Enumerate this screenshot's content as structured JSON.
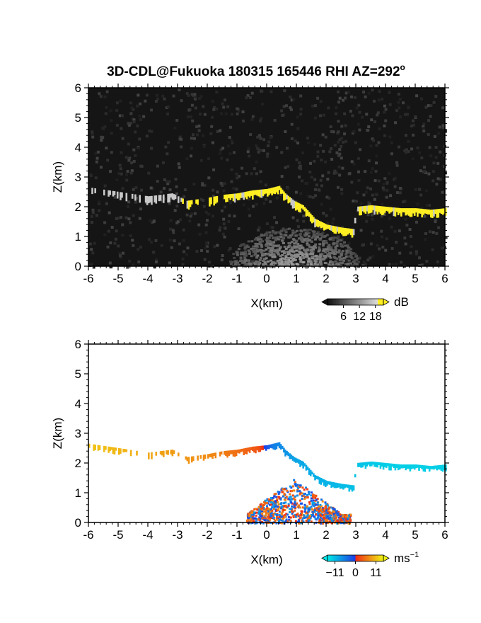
{
  "chart_data": [
    {
      "type": "heatmap",
      "panel": "backscatter",
      "title": "3D-CDL@Fukuoka 180315 165446 RHI AZ=292",
      "title_superscript": "o",
      "xlabel": "X(km)",
      "ylabel": "Z(km)",
      "xlim": [
        -6,
        6
      ],
      "ylim": [
        0,
        6
      ],
      "x_ticks": [
        "-6",
        "-5",
        "-4",
        "-3",
        "-2",
        "-1",
        "0",
        "1",
        "2",
        "3",
        "4",
        "5",
        "6"
      ],
      "y_ticks": [
        "0",
        "1",
        "2",
        "3",
        "4",
        "5",
        "6"
      ],
      "colorbar": {
        "unit": "dB",
        "ticks": [
          "6",
          "12",
          "18"
        ],
        "range": [
          0,
          21
        ]
      },
      "background": "#151515",
      "colors": {
        "strong": "#ffee22",
        "weak": "#c8c8c8"
      },
      "layer_top_km": [
        [
          -6,
          2.65
        ],
        [
          -5,
          2.5
        ],
        [
          -4,
          2.35
        ],
        [
          -3.2,
          2.45
        ],
        [
          -2.7,
          2.2
        ],
        [
          -2,
          2.3
        ],
        [
          -1.5,
          2.4
        ],
        [
          -1,
          2.45
        ],
        [
          -0.5,
          2.55
        ],
        [
          0,
          2.6
        ],
        [
          0.4,
          2.7
        ],
        [
          0.6,
          2.45
        ],
        [
          0.9,
          2.2
        ],
        [
          1.2,
          2.05
        ],
        [
          1.6,
          1.6
        ],
        [
          2,
          1.4
        ],
        [
          2.5,
          1.3
        ],
        [
          2.9,
          1.25
        ],
        [
          3,
          2.0
        ],
        [
          3.5,
          2.05
        ],
        [
          4,
          2.0
        ],
        [
          4.5,
          1.95
        ],
        [
          5,
          1.95
        ],
        [
          5.5,
          1.9
        ],
        [
          6,
          1.95
        ]
      ],
      "layer_thickness_km": 0.22,
      "ground_clutter": {
        "x_center_km": 0.9,
        "half_width_km": 2.2,
        "max_height_km": 1.3
      }
    },
    {
      "type": "heatmap",
      "panel": "doppler_velocity",
      "xlabel": "X(km)",
      "ylabel": "Z(km)",
      "xlim": [
        -6,
        6
      ],
      "ylim": [
        0,
        6
      ],
      "x_ticks": [
        "-6",
        "-5",
        "-4",
        "-3",
        "-2",
        "-1",
        "0",
        "1",
        "2",
        "3",
        "4",
        "5",
        "6"
      ],
      "y_ticks": [
        "0",
        "1",
        "2",
        "3",
        "4",
        "5",
        "6"
      ],
      "colorbar": {
        "unit": "ms",
        "unit_exponent": "−1",
        "ticks": [
          "−11",
          "0",
          "11"
        ],
        "range": [
          -15,
          15
        ]
      },
      "velocity_ms_along_layer": [
        [
          -6,
          11
        ],
        [
          -5,
          10
        ],
        [
          -4,
          9
        ],
        [
          -3,
          8
        ],
        [
          -2,
          7
        ],
        [
          -1,
          5
        ],
        [
          -0.3,
          3
        ],
        [
          0.2,
          -5
        ],
        [
          1,
          -8
        ],
        [
          2,
          -9
        ],
        [
          3,
          -10
        ],
        [
          4,
          -11
        ],
        [
          5,
          -11
        ],
        [
          6,
          -11
        ]
      ],
      "lower_region": {
        "x_range_km": [
          -0.7,
          2.8
        ],
        "max_height_km": 1.5,
        "velocity_ms_range": [
          -8,
          8
        ]
      }
    }
  ]
}
